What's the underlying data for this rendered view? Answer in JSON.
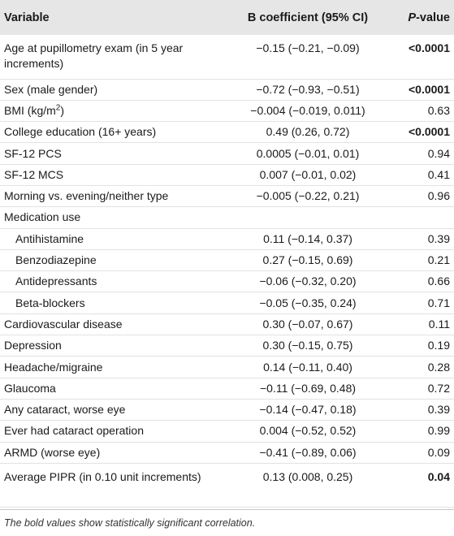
{
  "header": {
    "variable": "Variable",
    "b_coefficient": "B coefficient (95% CI)",
    "p_value_italic": "P",
    "p_value_rest": "-value"
  },
  "rows": [
    {
      "variable": "Age at pupillometry exam (in 5 year increments)",
      "b": "−0.15 (−0.21, −0.09)",
      "p": "<0.0001"
    },
    {
      "variable": "Sex (male gender)",
      "b": "−0.72 (−0.93, −0.51)",
      "p": "<0.0001"
    },
    {
      "variable_main": "BMI (kg/m",
      "variable_sup": "2",
      "variable_end": ")",
      "b": "−0.004 (−0.019, 0.011)",
      "p": "0.63"
    },
    {
      "variable": "College education (16+ years)",
      "b": "0.49 (0.26, 0.72)",
      "p": "<0.0001"
    },
    {
      "variable": "SF-12 PCS",
      "b": "0.0005 (−0.01, 0.01)",
      "p": "0.94"
    },
    {
      "variable": "SF-12 MCS",
      "b": "0.007 (−0.01, 0.02)",
      "p": "0.41"
    },
    {
      "variable": "Morning vs. evening/neither type",
      "b": "−0.005 (−0.22, 0.21)",
      "p": "0.96"
    },
    {
      "variable": "Medication use",
      "b": "",
      "p": ""
    },
    {
      "variable": "Antihistamine",
      "b": "0.11 (−0.14, 0.37)",
      "p": "0.39"
    },
    {
      "variable": "Benzodiazepine",
      "b": "0.27 (−0.15, 0.69)",
      "p": "0.21"
    },
    {
      "variable": "Antidepressants",
      "b": "−0.06 (−0.32, 0.20)",
      "p": "0.66"
    },
    {
      "variable": "Beta-blockers",
      "b": "−0.05 (−0.35, 0.24)",
      "p": "0.71"
    },
    {
      "variable": "Cardiovascular disease",
      "b": "0.30 (−0.07, 0.67)",
      "p": "0.11"
    },
    {
      "variable": "Depression",
      "b": "0.30 (−0.15, 0.75)",
      "p": "0.19"
    },
    {
      "variable": "Headache/migraine",
      "b": "0.14 (−0.11, 0.40)",
      "p": "0.28"
    },
    {
      "variable": "Glaucoma",
      "b": "−0.11 (−0.69, 0.48)",
      "p": "0.72"
    },
    {
      "variable": "Any cataract, worse eye",
      "b": "−0.14 (−0.47, 0.18)",
      "p": "0.39"
    },
    {
      "variable": "Ever had cataract operation",
      "b": "0.004 (−0.52, 0.52)",
      "p": "0.99"
    },
    {
      "variable": "ARMD (worse eye)",
      "b": "−0.41 (−0.89, 0.06)",
      "p": "0.09"
    },
    {
      "variable": "Average PIPR (in 0.10 unit increments)",
      "b": "0.13 (0.008, 0.25)",
      "p": "0.04"
    }
  ],
  "footnote": "The bold values show statistically significant correlation."
}
